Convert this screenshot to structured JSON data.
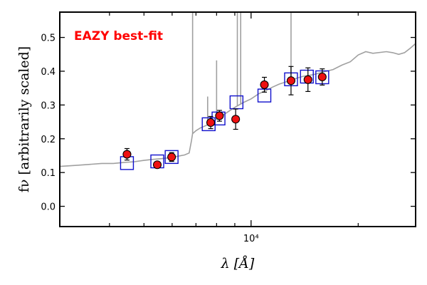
{
  "chart_data": {
    "type": "scatter",
    "title": "",
    "annotation": "EAZY best-fit",
    "xlabel": "λ [Å]",
    "ylabel": "fν [arbitrarily scaled]",
    "xscale": "log",
    "xlim": [
      2900,
      29000
    ],
    "ylim": [
      -0.06,
      0.575
    ],
    "yticks": [
      0.0,
      0.1,
      0.2,
      0.3,
      0.4,
      0.5
    ],
    "ytick_labels": [
      "0.0",
      "0.1",
      "0.2",
      "0.3",
      "0.4",
      "0.5"
    ],
    "xtick_major": [
      10000
    ],
    "xtick_major_labels": [
      "10⁴"
    ],
    "xtick_minor": [
      4000,
      5000,
      6000,
      7000,
      8000,
      9000,
      20000
    ],
    "grid": false,
    "legend": "none",
    "colors": {
      "observed": "#ee1111",
      "model": "#1111cc",
      "spectrum": "#a0a0a0",
      "annotation": "#ff0000"
    },
    "series": [
      {
        "kind": "observed_photometry",
        "x": [
          4480,
          5450,
          5980,
          7700,
          8150,
          9050,
          10900,
          12950,
          14450,
          15850
        ],
        "y": [
          0.154,
          0.123,
          0.146,
          0.248,
          0.268,
          0.258,
          0.36,
          0.372,
          0.375,
          0.383
        ],
        "yerr": [
          0.017,
          0.009,
          0.013,
          0.018,
          0.016,
          0.03,
          0.022,
          0.042,
          0.035,
          0.024
        ]
      },
      {
        "kind": "model_photometry",
        "x": [
          4480,
          5450,
          5980,
          7600,
          8100,
          9100,
          10900,
          12950,
          14350,
          15850
        ],
        "y": [
          0.128,
          0.133,
          0.146,
          0.243,
          0.26,
          0.308,
          0.328,
          0.376,
          0.384,
          0.382
        ]
      },
      {
        "kind": "model_spectrum",
        "x": [
          2900,
          3200,
          3500,
          3800,
          4100,
          4400,
          4700,
          5000,
          5300,
          5600,
          5900,
          6200,
          6500,
          6700,
          6800,
          6850,
          7000,
          7200,
          7500,
          7800,
          8100,
          8400,
          8700,
          9000,
          9500,
          10000,
          10500,
          11000,
          11500,
          12000,
          12500,
          13000,
          13500,
          14000,
          15000,
          16000,
          17000,
          18000,
          19000,
          20000,
          21000,
          22000,
          24000,
          25000,
          26000,
          27000,
          28000,
          29000
        ],
        "y": [
          0.118,
          0.121,
          0.124,
          0.127,
          0.127,
          0.13,
          0.132,
          0.136,
          0.139,
          0.141,
          0.144,
          0.148,
          0.152,
          0.158,
          0.195,
          0.215,
          0.224,
          0.232,
          0.24,
          0.25,
          0.262,
          0.272,
          0.283,
          0.293,
          0.307,
          0.318,
          0.333,
          0.343,
          0.353,
          0.362,
          0.368,
          0.374,
          0.38,
          0.385,
          0.39,
          0.398,
          0.405,
          0.418,
          0.428,
          0.448,
          0.458,
          0.453,
          0.458,
          0.455,
          0.45,
          0.455,
          0.468,
          0.482
        ],
        "emission_lines": [
          {
            "x": 6850,
            "peak": 0.575
          },
          {
            "x": 7550,
            "peak": 0.325
          },
          {
            "x": 8000,
            "peak": 0.432
          },
          {
            "x": 9150,
            "peak": 0.575
          },
          {
            "x": 9350,
            "peak": 0.575
          },
          {
            "x": 12950,
            "peak": 0.575
          }
        ]
      }
    ]
  }
}
